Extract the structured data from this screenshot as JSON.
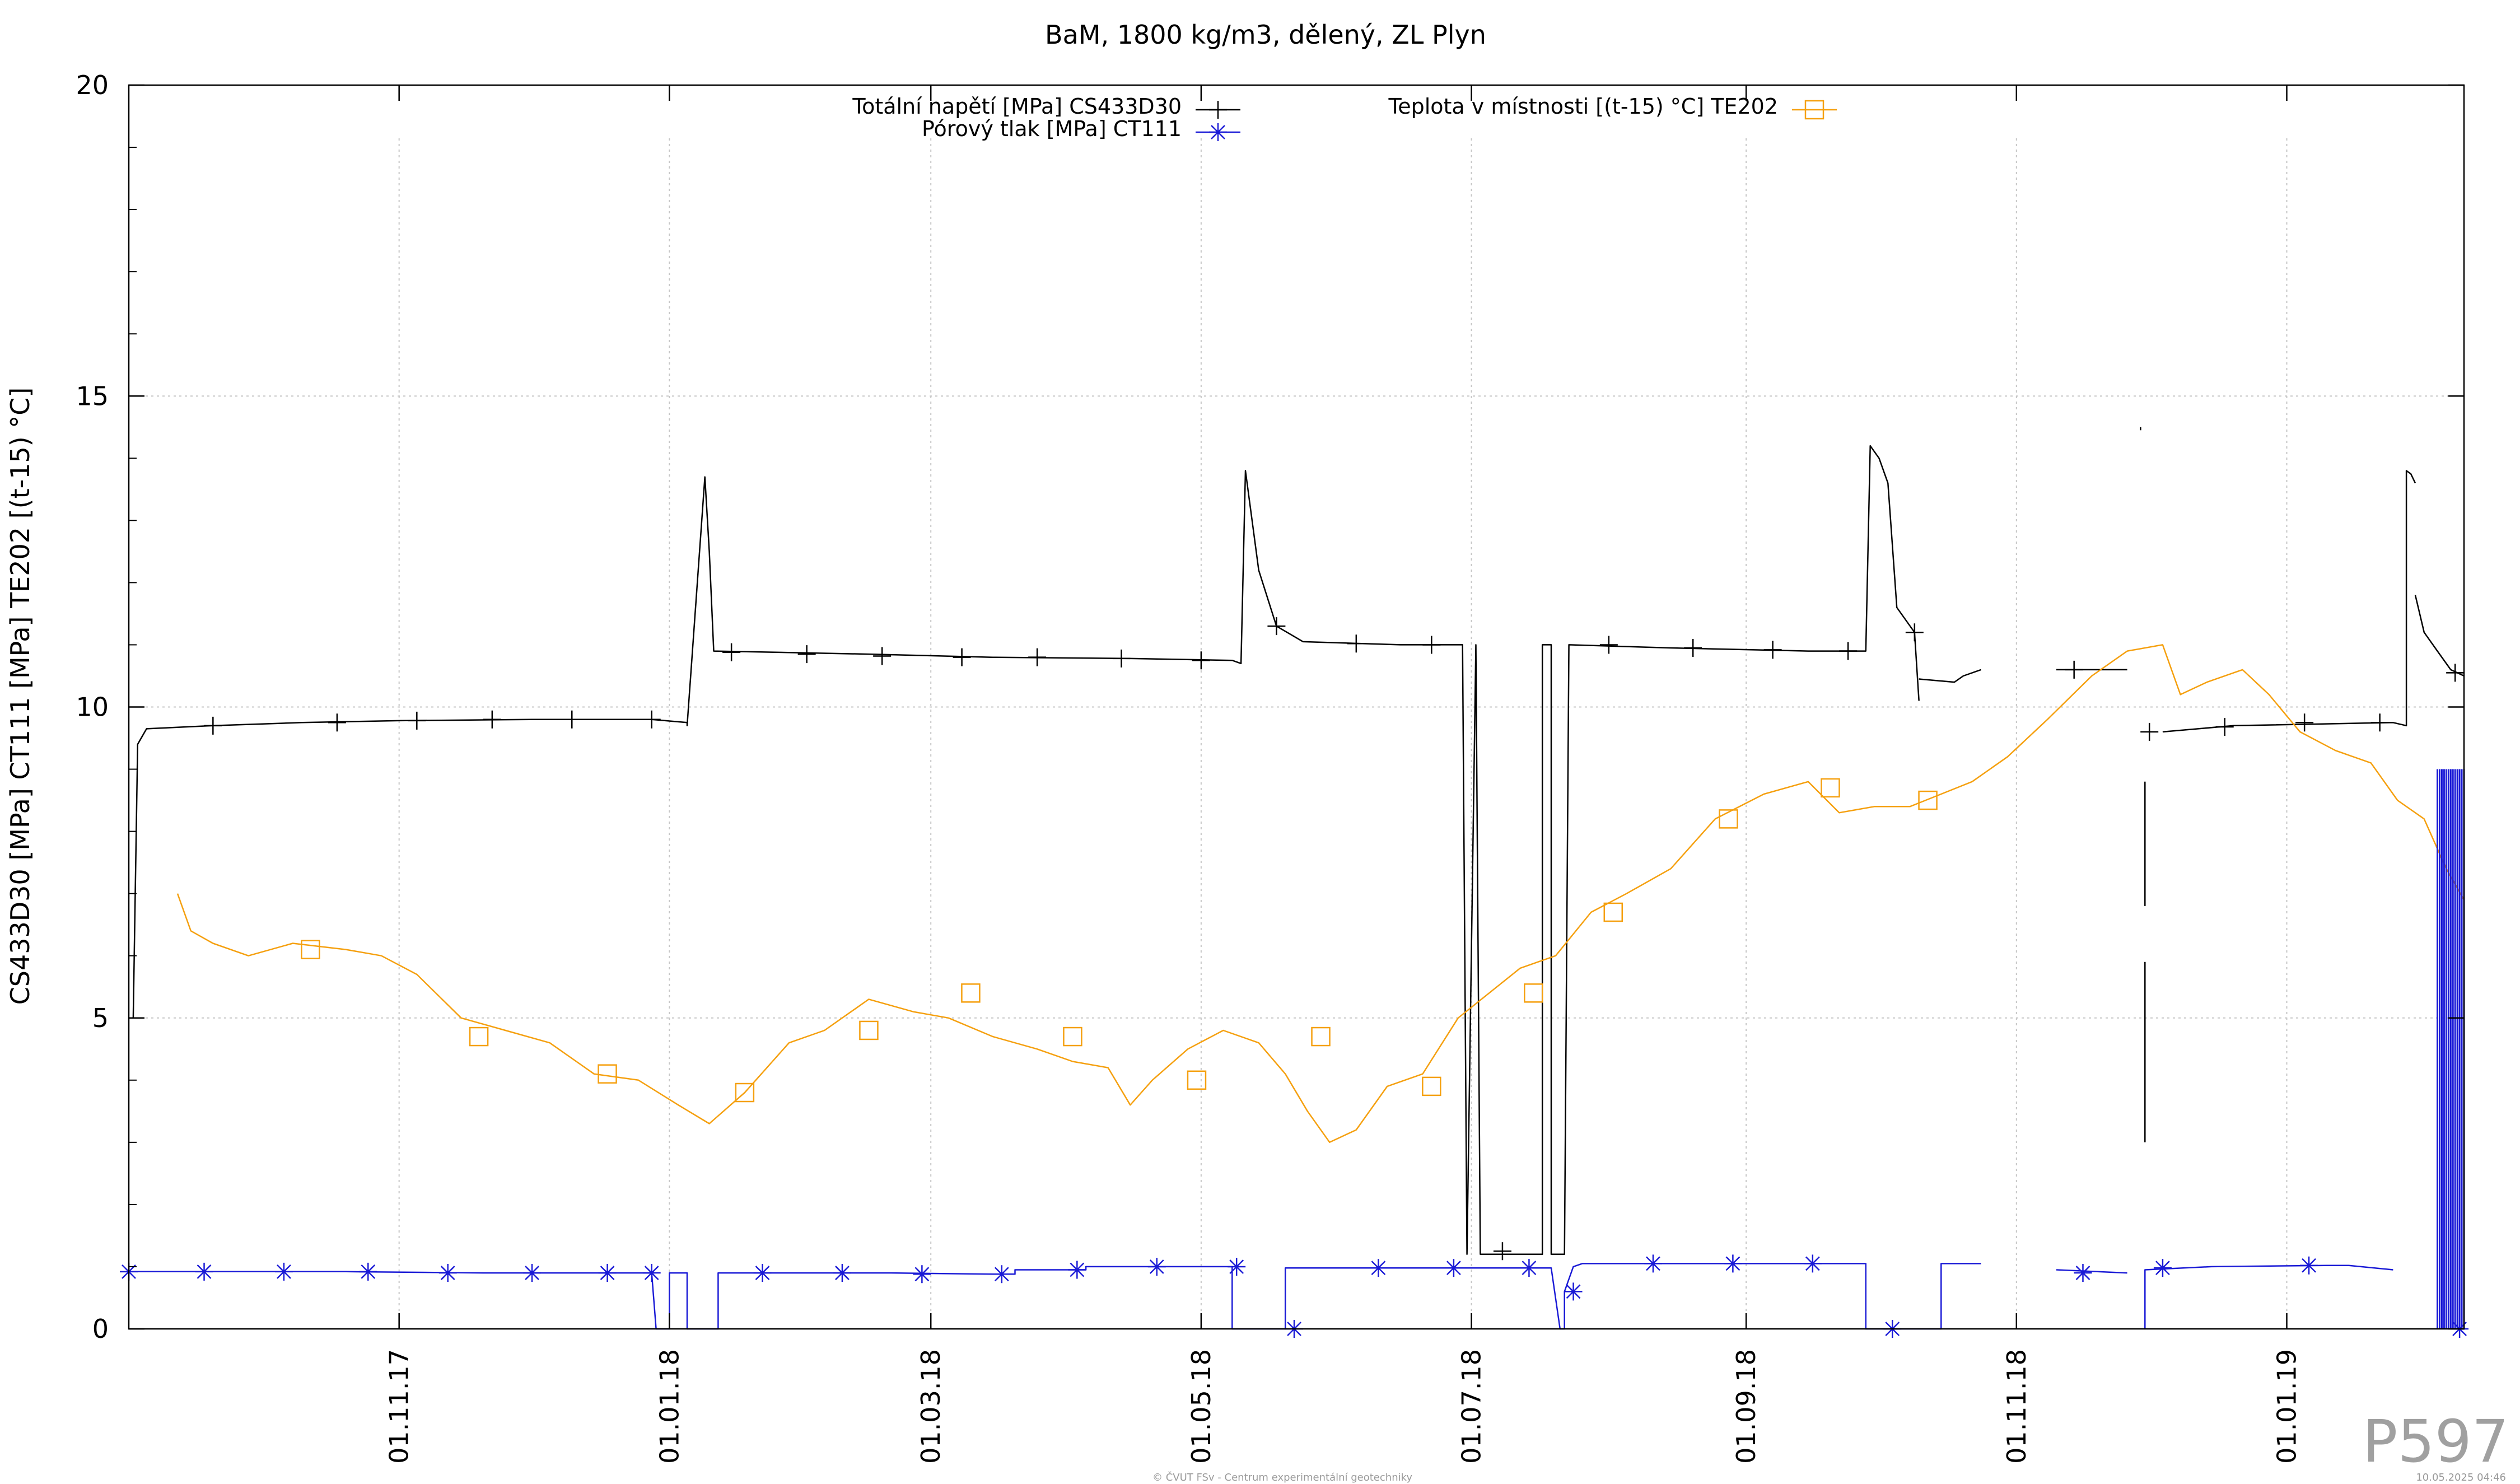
{
  "chart_data": {
    "type": "line",
    "title": "BaM, 1800 kg/m3, dělený, ZL Plyn",
    "ylabel": "CS433D30 [MPa] CT111 [MPa] TE202 [(t-15) °C]",
    "xlabel": "",
    "ylim": [
      0,
      20
    ],
    "yticks": [
      0,
      5,
      10,
      15,
      20
    ],
    "xlim": [
      "2017-09-01",
      "2019-02-10"
    ],
    "xticks": [
      "2017-11-01",
      "2018-01-01",
      "2018-03-01",
      "2018-05-01",
      "2018-07-01",
      "2018-09-01",
      "2018-11-01",
      "2019-01-01"
    ],
    "xtick_labels": [
      "01.11.17",
      "01.01.18",
      "01.03.18",
      "01.05.18",
      "01.07.18",
      "01.09.18",
      "01.11.18",
      "01.01.19"
    ],
    "grid": true,
    "legend_position": "top",
    "series": [
      {
        "name": "Totální napětí [MPa] CS433D30",
        "color": "#000000",
        "marker": "plus",
        "segments": [
          [
            [
              "2017-09-02",
              5.0
            ],
            [
              "2017-09-03",
              9.4
            ],
            [
              "2017-09-05",
              9.65
            ],
            [
              "2017-09-20",
              9.7
            ],
            [
              "2017-10-10",
              9.75
            ],
            [
              "2017-11-01",
              9.78
            ],
            [
              "2017-12-01",
              9.8
            ],
            [
              "2017-12-28",
              9.8
            ],
            [
              "2018-01-05",
              9.75
            ],
            [
              "2018-01-05",
              9.7
            ],
            [
              "2018-01-09",
              13.7
            ],
            [
              "2018-01-10",
              12.5
            ],
            [
              "2018-01-11",
              10.9
            ],
            [
              "2018-02-15",
              10.85
            ],
            [
              "2018-03-15",
              10.8
            ],
            [
              "2018-04-15",
              10.78
            ],
            [
              "2018-05-08",
              10.75
            ],
            [
              "2018-05-10",
              10.7
            ],
            [
              "2018-05-11",
              13.8
            ],
            [
              "2018-05-14",
              12.2
            ],
            [
              "2018-05-18",
              11.3
            ],
            [
              "2018-05-24",
              11.05
            ],
            [
              "2018-06-15",
              11.0
            ],
            [
              "2018-06-29",
              11.0
            ],
            [
              "2018-06-30",
              1.2
            ],
            [
              "2018-07-02",
              11.0
            ],
            [
              "2018-07-03",
              1.2
            ],
            [
              "2018-07-17",
              1.2
            ],
            [
              "2018-07-17",
              11.0
            ],
            [
              "2018-07-19",
              11.0
            ],
            [
              "2018-07-19",
              1.2
            ],
            [
              "2018-07-22",
              1.2
            ],
            [
              "2018-07-23",
              11.0
            ],
            [
              "2018-08-15",
              10.95
            ],
            [
              "2018-09-15",
              10.9
            ],
            [
              "2018-09-28",
              10.9
            ],
            [
              "2018-09-29",
              14.2
            ],
            [
              "2018-10-01",
              14.0
            ],
            [
              "2018-10-03",
              13.6
            ],
            [
              "2018-10-05",
              11.6
            ],
            [
              "2018-10-09",
              11.2
            ],
            [
              "2018-10-10",
              10.1
            ]
          ],
          [
            [
              "2018-10-10",
              10.45
            ],
            [
              "2018-10-18",
              10.4
            ],
            [
              "2018-10-20",
              10.5
            ],
            [
              "2018-10-24",
              10.6
            ]
          ],
          [
            [
              "2018-11-10",
              10.6
            ],
            [
              "2018-11-26",
              10.6
            ]
          ],
          [
            [
              "2018-11-29",
              14.5
            ],
            [
              "2018-11-29",
              14.45
            ]
          ],
          [
            [
              "2018-11-30",
              3.0
            ],
            [
              "2018-11-30",
              5.9
            ]
          ],
          [
            [
              "2018-11-30",
              6.8
            ],
            [
              "2018-11-30",
              8.8
            ]
          ],
          [
            [
              "2018-12-04",
              9.6
            ],
            [
              "2018-12-20",
              9.7
            ],
            [
              "2019-01-25",
              9.75
            ],
            [
              "2019-01-28",
              9.7
            ],
            [
              "2019-01-28",
              13.8
            ],
            [
              "2019-01-29",
              13.75
            ],
            [
              "2019-01-30",
              13.6
            ]
          ],
          [
            [
              "2019-01-30",
              11.8
            ],
            [
              "2019-02-01",
              11.2
            ],
            [
              "2019-02-04",
              10.9
            ],
            [
              "2019-02-07",
              10.6
            ],
            [
              "2019-02-10",
              10.5
            ]
          ]
        ],
        "markers": [
          [
            "2017-09-20",
            9.7
          ],
          [
            "2017-10-18",
            9.75
          ],
          [
            "2017-11-05",
            9.78
          ],
          [
            "2017-11-22",
            9.8
          ],
          [
            "2017-12-10",
            9.8
          ],
          [
            "2017-12-28",
            9.8
          ],
          [
            "2018-01-15",
            10.88
          ],
          [
            "2018-02-01",
            10.85
          ],
          [
            "2018-02-18",
            10.82
          ],
          [
            "2018-03-08",
            10.8
          ],
          [
            "2018-03-25",
            10.8
          ],
          [
            "2018-04-13",
            10.78
          ],
          [
            "2018-05-01",
            10.75
          ],
          [
            "2018-05-18",
            11.3
          ],
          [
            "2018-06-05",
            11.02
          ],
          [
            "2018-06-22",
            11.0
          ],
          [
            "2018-07-08",
            1.25
          ],
          [
            "2018-08-01",
            11.0
          ],
          [
            "2018-08-20",
            10.95
          ],
          [
            "2018-09-07",
            10.92
          ],
          [
            "2018-09-24",
            10.9
          ],
          [
            "2018-10-09",
            11.2
          ],
          [
            "2018-11-14",
            10.6
          ],
          [
            "2018-12-01",
            9.6
          ],
          [
            "2018-12-18",
            9.68
          ],
          [
            "2019-01-05",
            9.75
          ],
          [
            "2019-01-22",
            9.75
          ],
          [
            "2019-02-08",
            10.55
          ]
        ]
      },
      {
        "name": "Pórový tlak [MPa] CT111",
        "color": "#1a1ad6",
        "marker": "star",
        "segments": [
          [
            [
              "2017-09-01",
              0.92
            ],
            [
              "2017-10-20",
              0.92
            ],
            [
              "2017-11-20",
              0.9
            ],
            [
              "2017-12-28",
              0.9
            ],
            [
              "2017-12-29",
              0.0
            ],
            [
              "2018-01-01",
              0.0
            ],
            [
              "2018-01-01",
              0.9
            ],
            [
              "2018-01-05",
              0.9
            ],
            [
              "2018-01-05",
              0.0
            ],
            [
              "2018-01-12",
              0.0
            ],
            [
              "2018-01-12",
              0.9
            ],
            [
              "2018-02-20",
              0.9
            ],
            [
              "2018-03-15",
              0.88
            ],
            [
              "2018-03-20",
              0.88
            ],
            [
              "2018-03-20",
              0.95
            ],
            [
              "2018-04-05",
              0.95
            ],
            [
              "2018-04-05",
              1.0
            ],
            [
              "2018-05-08",
              1.0
            ],
            [
              "2018-05-08",
              0.0
            ],
            [
              "2018-05-20",
              0.0
            ],
            [
              "2018-05-20",
              0.98
            ],
            [
              "2018-07-18",
              0.98
            ],
            [
              "2018-07-19",
              0.98
            ],
            [
              "2018-07-21",
              0.0
            ],
            [
              "2018-07-22",
              0.0
            ],
            [
              "2018-07-22",
              0.6
            ],
            [
              "2018-07-24",
              1.0
            ],
            [
              "2018-07-26",
              1.05
            ],
            [
              "2018-09-27",
              1.05
            ],
            [
              "2018-09-28",
              1.05
            ],
            [
              "2018-09-28",
              0.0
            ],
            [
              "2018-10-15",
              0.0
            ],
            [
              "2018-10-15",
              1.05
            ],
            [
              "2018-10-24",
              1.05
            ]
          ],
          [
            [
              "2018-11-10",
              0.95
            ],
            [
              "2018-11-26",
              0.9
            ]
          ],
          [
            [
              "2018-11-30",
              0.0
            ],
            [
              "2018-11-30",
              0.95
            ],
            [
              "2018-12-15",
              1.0
            ],
            [
              "2019-01-10",
              1.02
            ],
            [
              "2019-01-15",
              1.02
            ],
            [
              "2019-01-25",
              0.95
            ]
          ],
          [
            [
              "2019-02-00",
              0.0
            ]
          ]
        ],
        "markers": [
          [
            "2017-09-01",
            0.92
          ],
          [
            "2017-09-18",
            0.92
          ],
          [
            "2017-10-06",
            0.92
          ],
          [
            "2017-10-25",
            0.92
          ],
          [
            "2017-11-12",
            0.9
          ],
          [
            "2017-12-01",
            0.9
          ],
          [
            "2017-12-18",
            0.9
          ],
          [
            "2017-12-28",
            0.9
          ],
          [
            "2018-01-22",
            0.9
          ],
          [
            "2018-02-09",
            0.9
          ],
          [
            "2018-02-27",
            0.88
          ],
          [
            "2018-03-17",
            0.88
          ],
          [
            "2018-04-03",
            0.95
          ],
          [
            "2018-04-21",
            1.0
          ],
          [
            "2018-05-09",
            1.0
          ],
          [
            "2018-05-22",
            0.0
          ],
          [
            "2018-06-10",
            0.98
          ],
          [
            "2018-06-27",
            0.98
          ],
          [
            "2018-07-14",
            0.98
          ],
          [
            "2018-07-24",
            0.6
          ],
          [
            "2018-08-11",
            1.05
          ],
          [
            "2018-08-29",
            1.05
          ],
          [
            "2018-09-16",
            1.05
          ],
          [
            "2018-10-04",
            0.0
          ],
          [
            "2018-11-16",
            0.9
          ],
          [
            "2018-12-04",
            0.98
          ],
          [
            "2019-01-06",
            1.02
          ],
          [
            "2019-02-09",
            0.0
          ]
        ]
      },
      {
        "name": "Teplota v místnosti [(t-15) °C] TE202",
        "color": "#f5a00f",
        "marker": "square",
        "segments": [
          [
            [
              "2017-09-12",
              7.0
            ],
            [
              "2017-09-15",
              6.4
            ],
            [
              "2017-09-20",
              6.2
            ],
            [
              "2017-09-28",
              6.0
            ],
            [
              "2017-10-08",
              6.2
            ],
            [
              "2017-10-20",
              6.1
            ],
            [
              "2017-10-28",
              6.0
            ],
            [
              "2017-11-05",
              5.7
            ],
            [
              "2017-11-15",
              5.0
            ],
            [
              "2017-11-25",
              4.8
            ],
            [
              "2017-12-05",
              4.6
            ],
            [
              "2017-12-15",
              4.1
            ],
            [
              "2017-12-25",
              4.0
            ],
            [
              "2018-01-03",
              3.6
            ],
            [
              "2018-01-10",
              3.3
            ],
            [
              "2018-01-18",
              3.8
            ],
            [
              "2018-01-28",
              4.6
            ],
            [
              "2018-02-05",
              4.8
            ],
            [
              "2018-02-15",
              5.3
            ],
            [
              "2018-02-25",
              5.1
            ],
            [
              "2018-03-05",
              5.0
            ],
            [
              "2018-03-15",
              4.7
            ],
            [
              "2018-03-25",
              4.5
            ],
            [
              "2018-04-02",
              4.3
            ],
            [
              "2018-04-10",
              4.2
            ],
            [
              "2018-04-15",
              3.6
            ],
            [
              "2018-04-20",
              4.0
            ],
            [
              "2018-04-28",
              4.5
            ],
            [
              "2018-05-06",
              4.8
            ],
            [
              "2018-05-14",
              4.6
            ],
            [
              "2018-05-20",
              4.1
            ],
            [
              "2018-05-25",
              3.5
            ],
            [
              "2018-05-30",
              3.0
            ],
            [
              "2018-06-05",
              3.2
            ],
            [
              "2018-06-12",
              3.9
            ],
            [
              "2018-06-20",
              4.1
            ],
            [
              "2018-06-28",
              5.0
            ],
            [
              "2018-07-05",
              5.4
            ],
            [
              "2018-07-12",
              5.8
            ],
            [
              "2018-07-20",
              6.0
            ],
            [
              "2018-07-28",
              6.7
            ],
            [
              "2018-08-05",
              7.0
            ],
            [
              "2018-08-15",
              7.4
            ],
            [
              "2018-08-25",
              8.2
            ],
            [
              "2018-09-05",
              8.6
            ],
            [
              "2018-09-15",
              8.8
            ],
            [
              "2018-09-22",
              8.3
            ],
            [
              "2018-09-30",
              8.4
            ],
            [
              "2018-10-08",
              8.4
            ],
            [
              "2018-10-15",
              8.6
            ],
            [
              "2018-10-22",
              8.8
            ]
          ],
          [
            [
              "2018-10-22",
              8.8
            ],
            [
              "2018-10-30",
              9.2
            ],
            [
              "2018-11-08",
              9.8
            ],
            [
              "2018-11-18",
              10.5
            ],
            [
              "2018-11-26",
              10.9
            ],
            [
              "2018-12-04",
              11.0
            ],
            [
              "2018-12-08",
              10.2
            ],
            [
              "2018-12-14",
              10.4
            ],
            [
              "2018-12-22",
              10.6
            ],
            [
              "2018-12-28",
              10.2
            ],
            [
              "2019-01-04",
              9.6
            ],
            [
              "2019-01-12",
              9.3
            ],
            [
              "2019-01-20",
              9.1
            ],
            [
              "2019-01-26",
              8.5
            ],
            [
              "2019-02-01",
              8.2
            ],
            [
              "2019-02-06",
              7.4
            ],
            [
              "2019-02-10",
              6.9
            ]
          ]
        ],
        "markers": [
          [
            "2017-10-12",
            6.1
          ],
          [
            "2017-11-19",
            4.7
          ],
          [
            "2017-12-18",
            4.1
          ],
          [
            "2018-01-18",
            3.8
          ],
          [
            "2018-02-15",
            4.8
          ],
          [
            "2018-03-10",
            5.4
          ],
          [
            "2018-04-02",
            4.7
          ],
          [
            "2018-04-30",
            4.0
          ],
          [
            "2018-05-28",
            4.7
          ],
          [
            "2018-06-22",
            3.9
          ],
          [
            "2018-07-15",
            5.4
          ],
          [
            "2018-08-02",
            6.7
          ],
          [
            "2018-08-28",
            8.2
          ],
          [
            "2018-09-20",
            8.7
          ],
          [
            "2018-10-12",
            8.5
          ]
        ]
      }
    ]
  },
  "watermark": "P597",
  "footer_left": "© ČVUT FSv - Centrum experimentální geotechniky",
  "footer_right": "10.05.2025 04:46"
}
